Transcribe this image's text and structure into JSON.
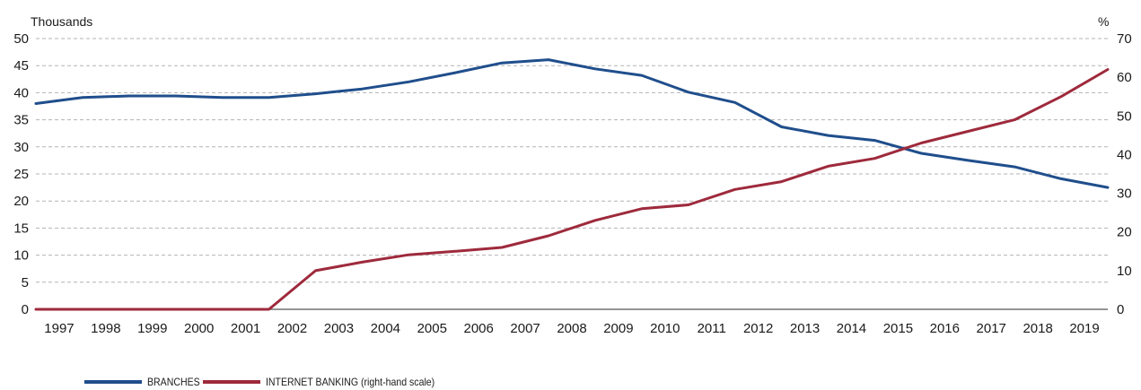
{
  "chart_data": {
    "type": "line",
    "left_unit": "Thousands",
    "right_unit": "%",
    "categories": [
      "1997",
      "1998",
      "1999",
      "2000",
      "2001",
      "2002",
      "2003",
      "2004",
      "2005",
      "2006",
      "2007",
      "2008",
      "2009",
      "2010",
      "2011",
      "2012",
      "2013",
      "2014",
      "2015",
      "2016",
      "2017",
      "2018",
      "2019"
    ],
    "y_left": {
      "min": 0,
      "max": 50,
      "ticks": [
        0,
        5,
        10,
        15,
        20,
        25,
        30,
        35,
        40,
        45,
        50
      ]
    },
    "y_right": {
      "min": 0,
      "max": 70,
      "ticks": [
        0,
        10,
        20,
        30,
        40,
        50,
        60,
        70
      ]
    },
    "grid": true,
    "legend_position": "bottom-left",
    "series": [
      {
        "name": "BRANCHES",
        "axis": "left",
        "color": "#1f4e8c",
        "points": [
          [
            1996.5,
            38.0
          ],
          [
            1997.5,
            39.1
          ],
          [
            1998.5,
            39.4
          ],
          [
            1999.5,
            39.4
          ],
          [
            2000.5,
            39.1
          ],
          [
            2001.5,
            39.1
          ],
          [
            2002.5,
            39.8
          ],
          [
            2003.5,
            40.7
          ],
          [
            2004.5,
            42.0
          ],
          [
            2005.5,
            43.7
          ],
          [
            2006.5,
            45.5
          ],
          [
            2007.5,
            46.1
          ],
          [
            2008.5,
            44.4
          ],
          [
            2009.5,
            43.2
          ],
          [
            2010.5,
            40.1
          ],
          [
            2011.5,
            38.2
          ],
          [
            2012.5,
            33.7
          ],
          [
            2013.5,
            32.1
          ],
          [
            2014.5,
            31.2
          ],
          [
            2015.5,
            28.8
          ],
          [
            2016.5,
            27.5
          ],
          [
            2017.5,
            26.3
          ],
          [
            2018.5,
            24.1
          ],
          [
            2019.5,
            22.5
          ]
        ]
      },
      {
        "name": "INTERNET BANKING (right-hand scale)",
        "axis": "right",
        "color": "#9e2a3c",
        "points": [
          [
            1996.5,
            0
          ],
          [
            1997.5,
            0
          ],
          [
            1998.5,
            0
          ],
          [
            1999.5,
            0
          ],
          [
            2000.5,
            0
          ],
          [
            2001.5,
            0
          ],
          [
            2002.5,
            10.0
          ],
          [
            2003.5,
            12.2
          ],
          [
            2004.5,
            14.1
          ],
          [
            2005.5,
            15.0
          ],
          [
            2006.5,
            16.0
          ],
          [
            2007.5,
            19.0
          ],
          [
            2008.5,
            23.0
          ],
          [
            2009.5,
            26.0
          ],
          [
            2010.5,
            27.0
          ],
          [
            2011.5,
            31.0
          ],
          [
            2012.5,
            33.0
          ],
          [
            2013.5,
            37.0
          ],
          [
            2014.5,
            39.0
          ],
          [
            2015.5,
            43.0
          ],
          [
            2016.5,
            46.0
          ],
          [
            2017.5,
            49.0
          ],
          [
            2018.5,
            55.0
          ],
          [
            2019.5,
            62.0
          ]
        ]
      }
    ]
  }
}
